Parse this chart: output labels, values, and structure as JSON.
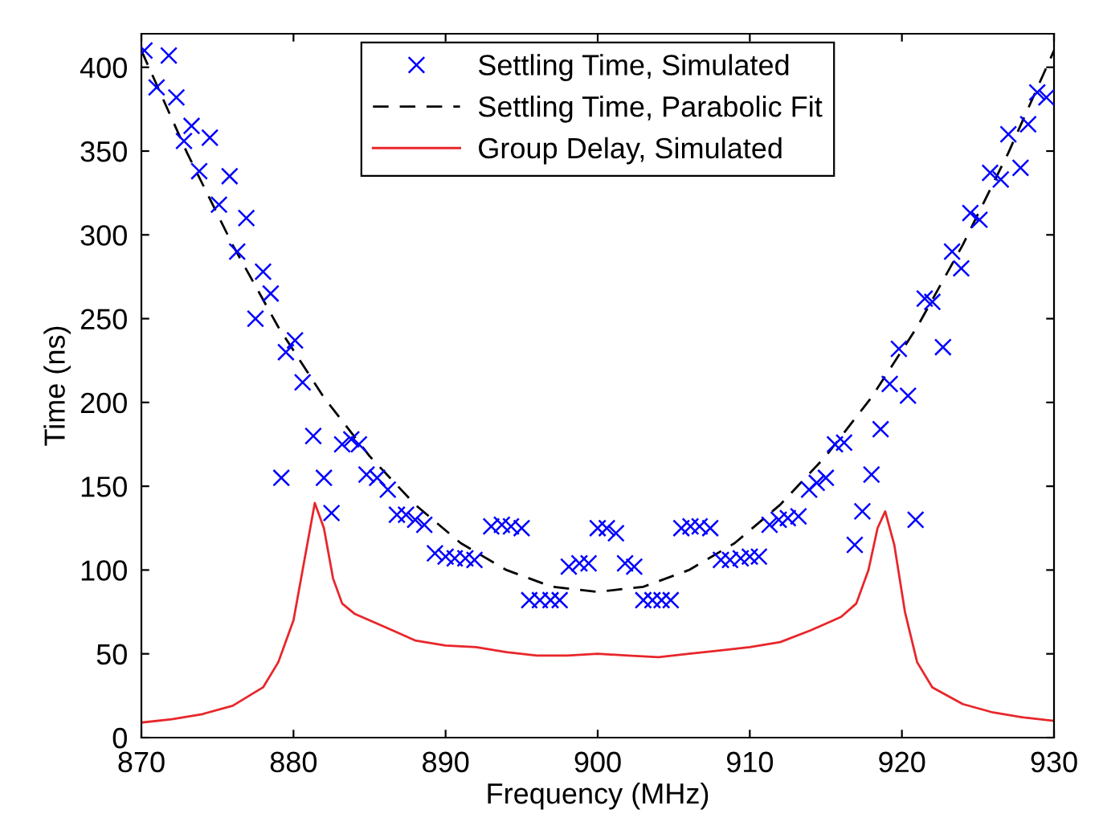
{
  "chart_data": {
    "type": "line",
    "xlabel": "Frequency (MHz)",
    "ylabel": "Time (ns)",
    "xlim": [
      870,
      930
    ],
    "xticks": [
      870,
      880,
      890,
      900,
      910,
      920,
      930
    ],
    "ylim": [
      0,
      420
    ],
    "yticks": [
      0,
      50,
      100,
      150,
      200,
      250,
      300,
      350,
      400
    ],
    "grid": false,
    "legend": "top",
    "series": [
      {
        "name": "Settling Time, Simulated",
        "type": "scatter",
        "marker": "cross",
        "color": "#0000ff",
        "x": [
          870.2,
          871,
          871.8,
          872.3,
          872.8,
          873.3,
          873.8,
          874.5,
          875.1,
          875.8,
          876.3,
          876.9,
          877.5,
          878,
          878.5,
          879.2,
          879.5,
          880.1,
          880.6,
          881.3,
          882,
          882.5,
          883.2,
          883.8,
          884.3,
          884.8,
          885.5,
          886.2,
          886.8,
          887.4,
          888,
          888.6,
          889.3,
          890,
          890.6,
          891.3,
          891.9,
          893,
          893.7,
          894.3,
          895,
          895.5,
          896.2,
          896.9,
          897.5,
          898.1,
          898.8,
          899.4,
          900,
          900.6,
          901.2,
          901.8,
          902.4,
          903,
          903.6,
          904.2,
          904.8,
          905.5,
          906.1,
          906.7,
          907.4,
          908.1,
          908.7,
          909.4,
          910,
          910.6,
          911.3,
          911.9,
          912.5,
          913.2,
          913.9,
          914.4,
          915,
          915.6,
          916.2,
          916.9,
          917.4,
          918,
          918.6,
          919.2,
          919.8,
          920.4,
          920.9,
          921.5,
          922,
          922.7,
          923.3,
          923.9,
          924.5,
          925.1,
          925.8,
          926.5,
          927,
          927.8,
          928.3,
          928.9,
          929.5
        ],
        "values": [
          410,
          388,
          407,
          382,
          356,
          365,
          338,
          358,
          318,
          335,
          290,
          310,
          250,
          278,
          265,
          155,
          230,
          237,
          212,
          180,
          155,
          134,
          175,
          178,
          175,
          157,
          155,
          148,
          133,
          133,
          130,
          127,
          110,
          108,
          107,
          107,
          106,
          126,
          127,
          126,
          125,
          82,
          82,
          82,
          82,
          102,
          104,
          104,
          125,
          125,
          122,
          104,
          102,
          82,
          82,
          82,
          82,
          125,
          126,
          126,
          125,
          106,
          106,
          107,
          108,
          108,
          127,
          130,
          131,
          132,
          148,
          152,
          155,
          175,
          176,
          115,
          135,
          157,
          184,
          211,
          232,
          204,
          130,
          262,
          260,
          233,
          290,
          280,
          313,
          309,
          337,
          333,
          360,
          340,
          366,
          385,
          382
        ]
      },
      {
        "name": "Settling Time, Parabolic Fit",
        "type": "line",
        "line_style": "dashed",
        "color": "#000000",
        "x": [
          870,
          873,
          876,
          879,
          882,
          885,
          888,
          891,
          894,
          897,
          900,
          903,
          906,
          909,
          912,
          915,
          918,
          921,
          924,
          927,
          930
        ],
        "values": [
          410,
          349,
          294,
          245,
          203,
          168,
          139,
          116,
          100,
          90,
          87,
          90,
          100,
          116,
          139,
          168,
          203,
          245,
          294,
          349,
          410
        ]
      },
      {
        "name": "Group Delay, Simulated",
        "type": "line",
        "line_style": "solid",
        "color": "#e8262b",
        "x": [
          870,
          872,
          874,
          876,
          878,
          879,
          880,
          880.8,
          881.4,
          882,
          882.6,
          883.2,
          884,
          886,
          888,
          890,
          892,
          894,
          896,
          898,
          900,
          902,
          904,
          906,
          908,
          910,
          912,
          914,
          916,
          917,
          917.8,
          918.4,
          918.9,
          919.5,
          920.2,
          921,
          922,
          924,
          926,
          928,
          930
        ],
        "values": [
          9,
          11,
          14,
          19,
          30,
          45,
          70,
          110,
          140,
          125,
          95,
          80,
          74,
          66,
          58,
          55,
          54,
          51,
          49,
          49,
          50,
          49,
          48,
          50,
          52,
          54,
          57,
          64,
          72,
          80,
          100,
          125,
          135,
          115,
          75,
          45,
          30,
          20,
          15,
          12,
          10
        ]
      }
    ]
  }
}
